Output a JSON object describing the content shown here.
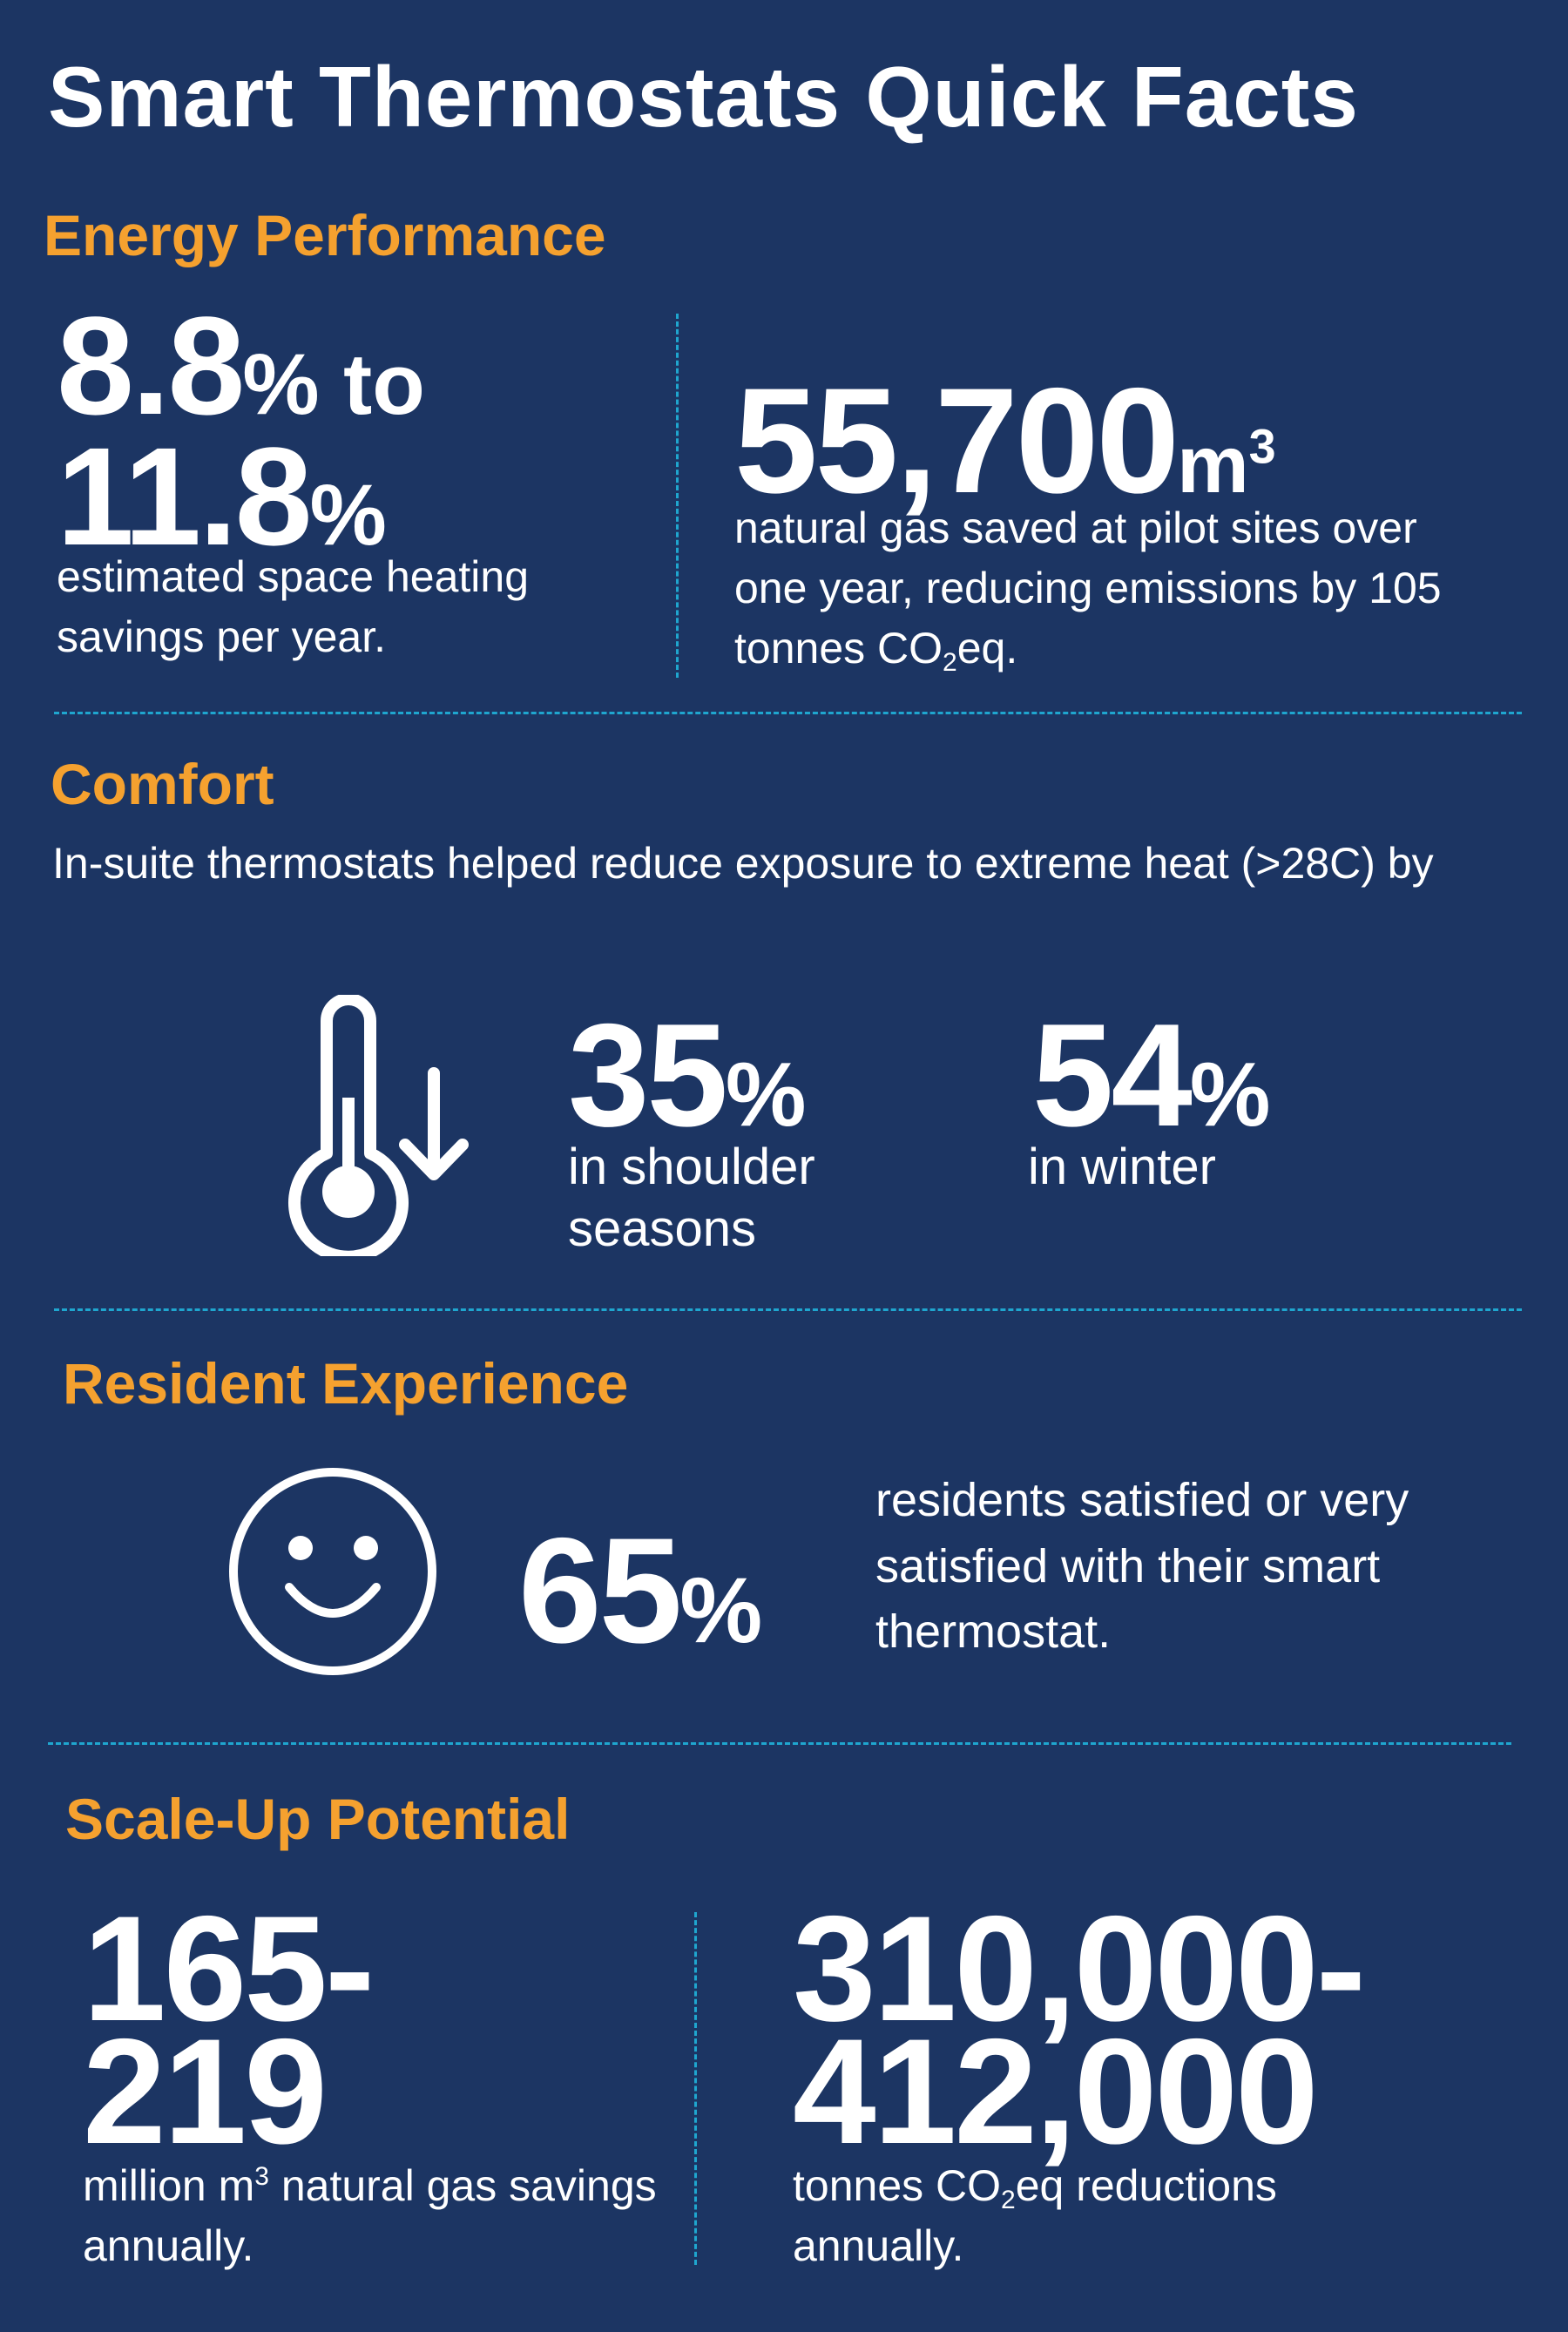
{
  "title": "Smart Thermostats Quick Facts",
  "colors": {
    "background": "#1c3563",
    "heading": "#f5a12f",
    "divider": "#1fa6cf",
    "text": "#ffffff"
  },
  "energy": {
    "heading": "Energy Performance",
    "stat1_line1_num": "8.8",
    "stat1_line1_pct": "%",
    "stat1_line1_to": " to",
    "stat1_line2_num": "11.8",
    "stat1_line2_pct": "%",
    "stat1_desc": "estimated space heating savings per year.",
    "stat2_num": "55,700",
    "stat2_unit": "m",
    "stat2_unit_sup": "3",
    "stat2_desc_a": "natural gas saved at pilot sites over one year, reducing emissions by 105 tonnes CO",
    "stat2_desc_sub": "2",
    "stat2_desc_b": "eq."
  },
  "comfort": {
    "heading": "Comfort",
    "intro": "In-suite thermostats helped reduce exposure to extreme heat (>28C) by",
    "icon": "thermometer-down-icon",
    "stat1_num": "35",
    "stat1_pct": "%",
    "stat1_desc": "in shoulder seasons",
    "stat2_num": "54",
    "stat2_pct": "%",
    "stat2_desc": "in winter"
  },
  "resident": {
    "heading": "Resident Experience",
    "icon": "smiley-face-icon",
    "stat_num": "65",
    "stat_pct": "%",
    "stat_desc": "residents satisfied or very satisfied with their smart thermostat."
  },
  "scale": {
    "heading": "Scale-Up Potential",
    "stat1_line1": "165-",
    "stat1_line2": "219",
    "stat1_desc_a": "million m",
    "stat1_desc_sup": "3",
    "stat1_desc_b": " natural gas savings annually.",
    "stat2_line1": "310,000-",
    "stat2_line2": "412,000",
    "stat2_desc_a": "tonnes CO",
    "stat2_desc_sub": "2",
    "stat2_desc_b": "eq reductions annually."
  }
}
